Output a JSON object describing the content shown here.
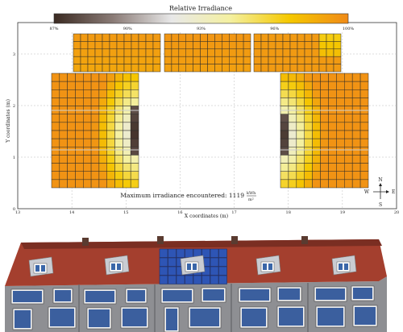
{
  "colorbar": {
    "title": "Relative Irradiance",
    "ticks": [
      "87%",
      "90%",
      "93%",
      "96%",
      "100%"
    ],
    "stops": [
      "#3b2a22",
      "#8a7b76",
      "#e8e8e8",
      "#f4f0a0",
      "#f5c800",
      "#f08a18"
    ]
  },
  "x_axis": {
    "label": "X coordinates (m)",
    "ticks": [
      "13",
      "14",
      "15",
      "16",
      "17",
      "18",
      "19",
      "20"
    ]
  },
  "y_axis": {
    "label": "Y coordinates (m)",
    "ticks": [
      "0",
      "1",
      "2",
      "3"
    ]
  },
  "max_note": {
    "prefix": "Maximum irradiance encountered: 1119",
    "unit_num": "kWh",
    "unit_den": "m²"
  },
  "compass": {
    "n": "N",
    "e": "E",
    "s": "S",
    "w": "W"
  },
  "colors": {
    "grid_line": "#222222",
    "roof": "#a8402f",
    "wall": "#8f8f8f",
    "panel": "#2a4fa8"
  }
}
